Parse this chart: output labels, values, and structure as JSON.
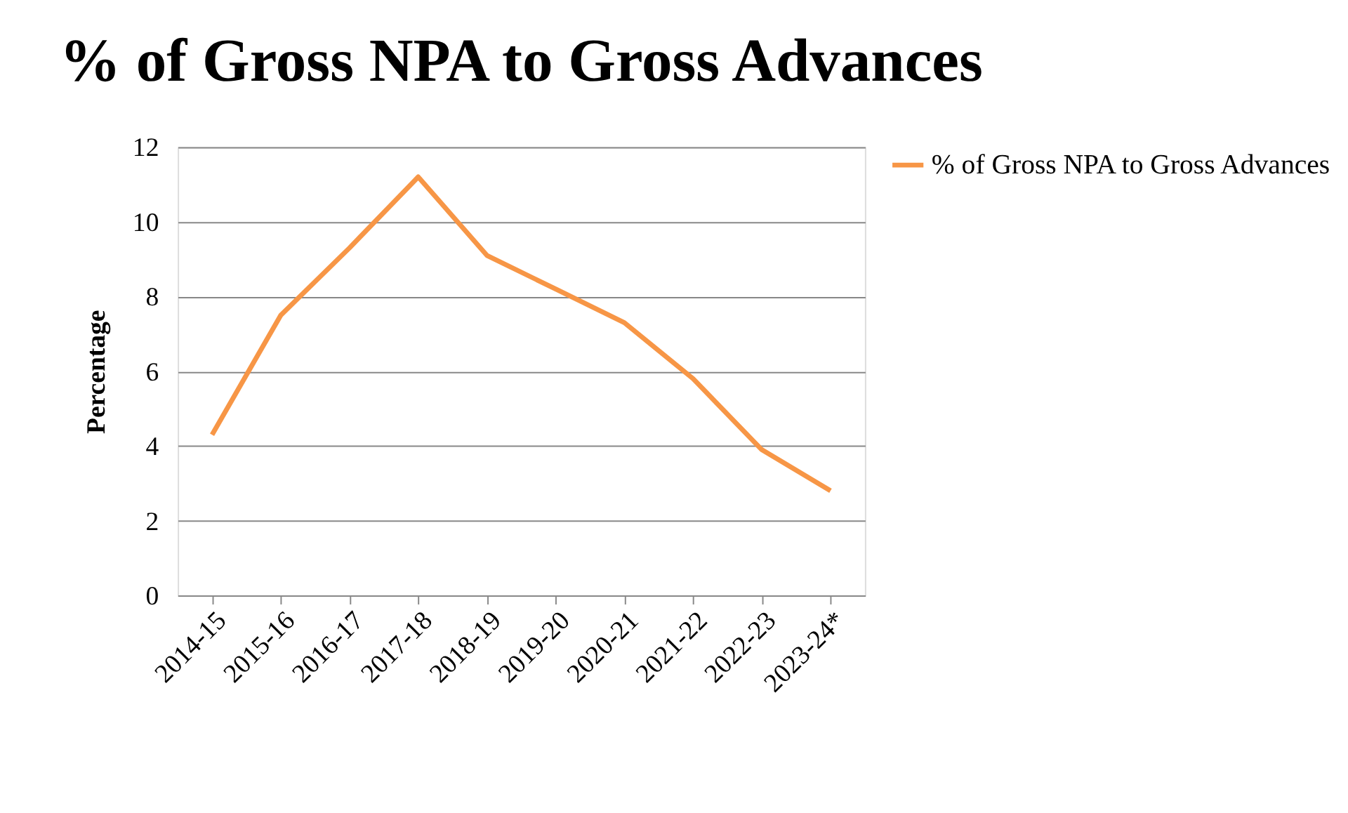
{
  "chart_data": {
    "type": "line",
    "title": "% of Gross NPA to Gross Advances",
    "ylabel": "Percentage",
    "categories": [
      "2014-15",
      "2015-16",
      "2016-17",
      "2017-18",
      "2018-19",
      "2019-20",
      "2020-21",
      "2021-22",
      "2022-23",
      "2023-24*"
    ],
    "series": [
      {
        "name": "% of Gross NPA to Gross Advances",
        "color": "#f79646",
        "values": [
          4.3,
          7.5,
          9.3,
          11.2,
          9.1,
          8.2,
          7.3,
          5.8,
          3.9,
          2.8
        ]
      }
    ],
    "ylim": [
      0,
      12
    ],
    "yticks": [
      0,
      2,
      4,
      6,
      8,
      10,
      12
    ],
    "grid": "y",
    "legend": "right",
    "marker": "none",
    "line_style": "solid"
  }
}
